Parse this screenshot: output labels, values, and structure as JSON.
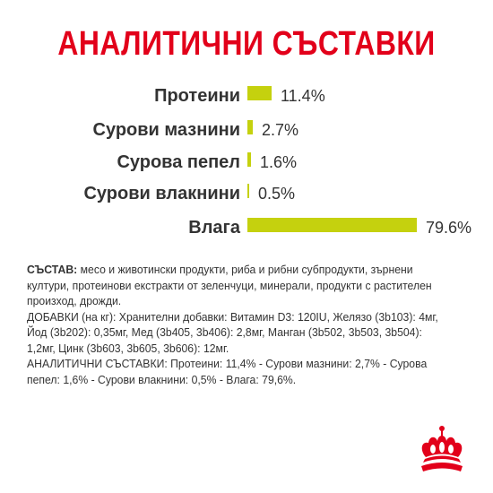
{
  "title": "АНАЛИТИЧНИ СЪСТАВКИ",
  "nutrients": [
    {
      "label": "Протеини",
      "value": "11.4%",
      "fraction": 0.114
    },
    {
      "label": "Сурови мазнини",
      "value": "2.7%",
      "fraction": 0.027
    },
    {
      "label": "Сурова пепел",
      "value": "1.6%",
      "fraction": 0.016
    },
    {
      "label": "Сурови влакнини",
      "value": "0.5%",
      "fraction": 0.005
    },
    {
      "label": "Влага",
      "value": "79.6%",
      "fraction": 0.796
    }
  ],
  "colors": {
    "title": "#e2001a",
    "bar": "#c5d10e",
    "text": "#333333",
    "logo": "#e2001a"
  },
  "composition": {
    "heading": "СЪСТАВ:",
    "text": " месо и животински продукти, риба и рибни субпродукти, зърнени култури, протеинови екстракти от зеленчуци, минерали, продукти с растителен произход, дрожди.",
    "additives": "ДОБАВКИ (на кг): Хранителни добавки: Витамин D3: 120IU, Желязо (3b103): 4мг, Йод (3b202): 0,35мг, Мед (3b405, 3b406): 2,8мг, Манган (3b502, 3b503, 3b504): 1,2мг, Цинк (3b603, 3b605, 3b606): 12мг.",
    "analytical": "АНАЛИТИЧНИ СЪСТАВКИ: Протеини: 11,4% - Сурови мазнини: 2,7% - Сурова пепел: 1,6% - Сурови влакнини: 0,5% - Влага: 79,6%."
  },
  "logo": {
    "icon": "royal-crown-icon"
  }
}
